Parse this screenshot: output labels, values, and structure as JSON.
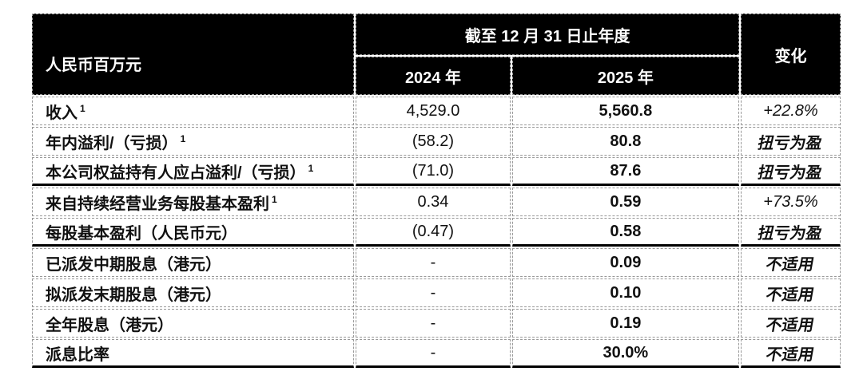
{
  "table": {
    "unit_label": "人民币百万元",
    "period_header": "截至 12 月 31 日止年度",
    "col_2024": "2024 年",
    "col_2025": "2025 年",
    "change_header": "变化",
    "colors": {
      "header_bg": "#000000",
      "header_text": "#ffffff",
      "body_text": "#111111",
      "grid_line": "#999999",
      "section_line": "#000000"
    },
    "rows": [
      {
        "label": "收入",
        "sup": "1",
        "v2024": "4,529.0",
        "v2025": "5,560.8",
        "change": "+22.8%"
      },
      {
        "label": "年内溢利/（亏损）",
        "sup": "1",
        "v2024": "(58.2)",
        "v2025": "80.8",
        "change": "扭亏为盈"
      },
      {
        "label": "本公司权益持有人应占溢利/（亏损）",
        "sup": "1",
        "v2024": "(71.0)",
        "v2025": "87.6",
        "change": "扭亏为盈"
      },
      {
        "label": "来自持续经营业务每股基本盈利",
        "sup": "1",
        "v2024": "0.34",
        "v2025": "0.59",
        "change": "+73.5%"
      },
      {
        "label": "每股基本盈利（人民币元）",
        "sup": "",
        "v2024": "(0.47)",
        "v2025": "0.58",
        "change": "扭亏为盈"
      },
      {
        "label": "已派发中期股息（港元）",
        "sup": "",
        "v2024": "-",
        "v2025": "0.09",
        "change": "不适用"
      },
      {
        "label": "拟派发末期股息（港元）",
        "sup": "",
        "v2024": "-",
        "v2025": "0.10",
        "change": "不适用"
      },
      {
        "label": "全年股息（港元）",
        "sup": "",
        "v2024": "-",
        "v2025": "0.19",
        "change": "不适用"
      },
      {
        "label": "派息比率",
        "sup": "",
        "v2024": "-",
        "v2025": "30.0%",
        "change": "不适用"
      }
    ]
  }
}
